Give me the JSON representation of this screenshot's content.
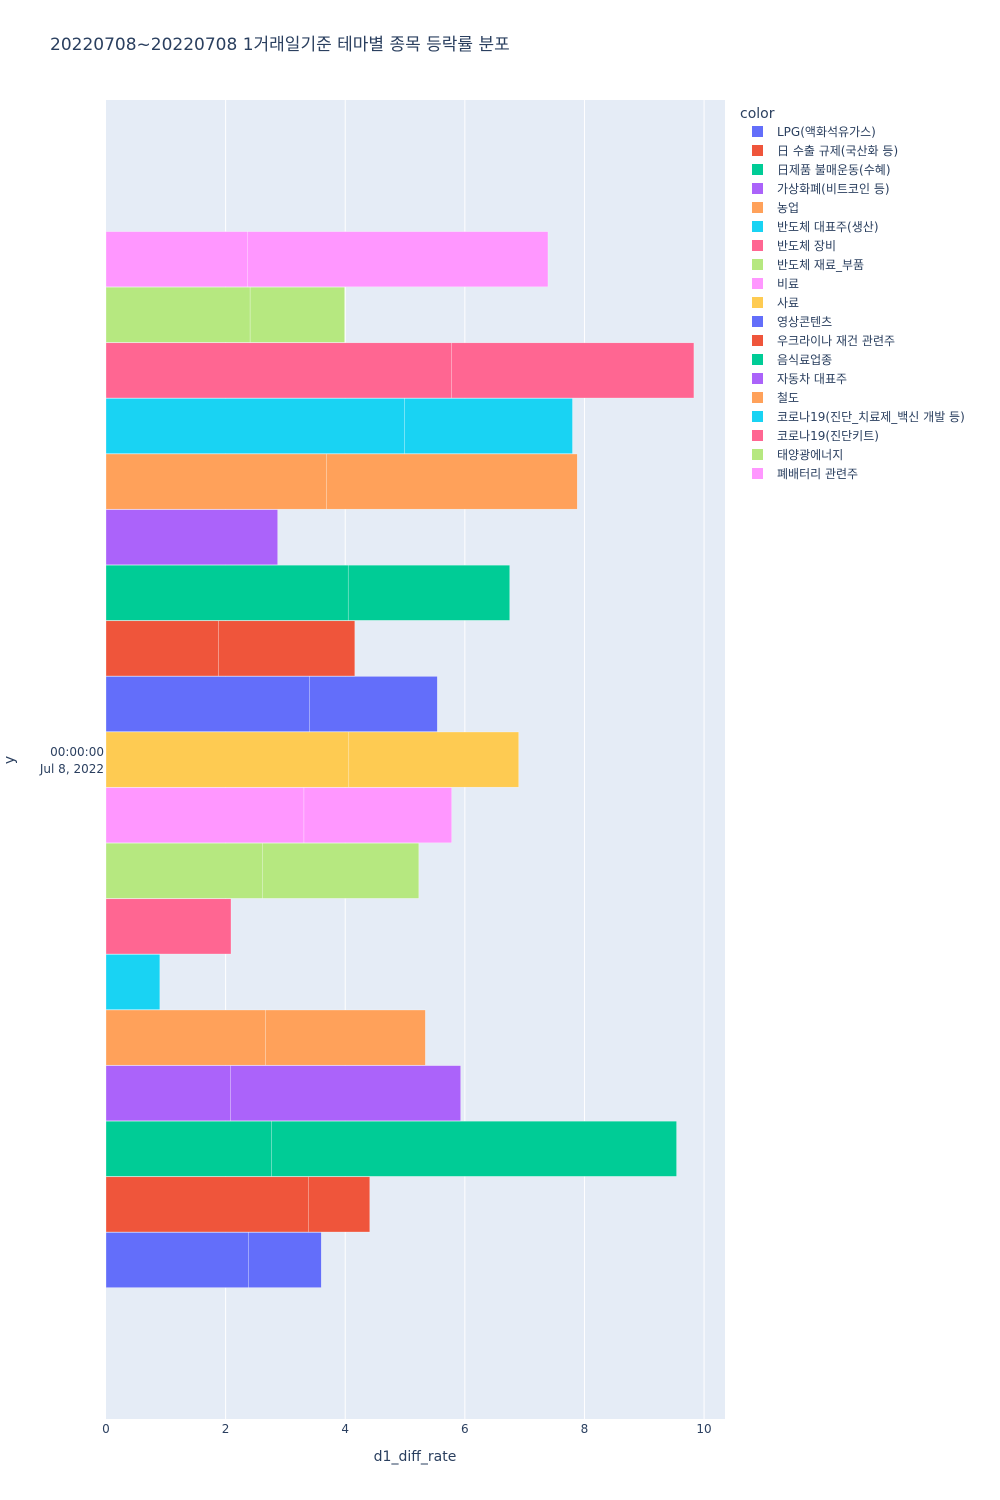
{
  "chart_data": {
    "type": "bar",
    "orientation": "horizontal",
    "barmode": "stack",
    "title": "20220708~20220708 1거래일기준 테마별 종목 등락률 분포",
    "xlabel": "d1_diff_rate",
    "ylabel": "y",
    "y_tick_label_line1": "00:00:00",
    "y_tick_label_line2": "Jul 8, 2022",
    "xlim": [
      0,
      10.35
    ],
    "x_ticks": [
      0,
      2,
      4,
      6,
      8,
      10
    ],
    "legend_title": "color",
    "legend_position": "top-right",
    "series": [
      {
        "name": "LPG(액화석유가스)",
        "color": "#636efa",
        "segments": [
          2.38,
          1.22
        ]
      },
      {
        "name": "日 수출 규제(국산화 등)",
        "color": "#EF553B",
        "segments": [
          3.39,
          1.02
        ]
      },
      {
        "name": "日제품 불매운동(수혜)",
        "color": "#00cc96",
        "segments": [
          2.77,
          6.77
        ]
      },
      {
        "name": "가상화폐(비트코인 등)",
        "color": "#ab63fa",
        "segments": [
          2.08,
          3.85
        ]
      },
      {
        "name": "농업",
        "color": "#FFA15A",
        "segments": [
          2.67,
          2.67
        ]
      },
      {
        "name": "반도체 대표주(생산)",
        "color": "#19d3f3",
        "segments": [
          0.9
        ]
      },
      {
        "name": "반도체 장비",
        "color": "#FF6692",
        "segments": [
          2.09
        ]
      },
      {
        "name": "반도체 재료_부품",
        "color": "#B6E880",
        "segments": [
          2.62,
          2.61
        ]
      },
      {
        "name": "비료",
        "color": "#FF97FF",
        "segments": [
          3.31,
          2.47
        ]
      },
      {
        "name": "사료",
        "color": "#FECB52",
        "segments": [
          4.06,
          2.84
        ]
      },
      {
        "name": "영상콘텐츠",
        "color": "#636efa",
        "segments": [
          3.4,
          2.14
        ]
      },
      {
        "name": "우크라이나 재건 관련주",
        "color": "#EF553B",
        "segments": [
          1.88,
          2.28
        ]
      },
      {
        "name": "음식료업종",
        "color": "#00cc96",
        "segments": [
          4.05,
          2.7
        ]
      },
      {
        "name": "자동차 대표주",
        "color": "#ab63fa",
        "segments": [
          2.87
        ]
      },
      {
        "name": "철도",
        "color": "#FFA15A",
        "segments": [
          3.69,
          4.19
        ]
      },
      {
        "name": "코로나19(진단_치료제_백신 개발 등)",
        "color": "#19d3f3",
        "segments": [
          4.99,
          2.81
        ]
      },
      {
        "name": "코로나19(진단키트)",
        "color": "#FF6692",
        "segments": [
          5.78,
          4.05
        ]
      },
      {
        "name": "태양광에너지",
        "color": "#B6E880",
        "segments": [
          2.41,
          1.58
        ]
      },
      {
        "name": "폐배터리 관련주",
        "color": "#FF97FF",
        "segments": [
          2.37,
          5.02
        ]
      }
    ]
  }
}
